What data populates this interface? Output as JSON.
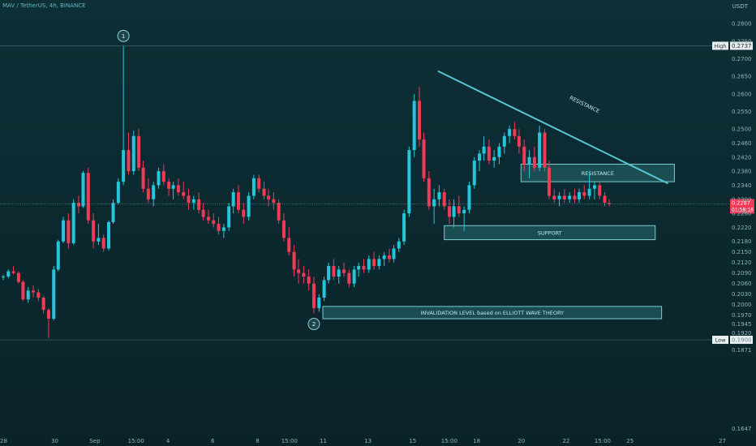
{
  "header": {
    "symbol": "MAV / TetherUS, 4h, BINANCE"
  },
  "axis": {
    "unit": "USDT"
  },
  "colors": {
    "up": "#26c6da",
    "down": "#ef3b55",
    "trend": "#56c7d6",
    "zone_fill": "#2c7b7f",
    "zone_stroke": "#79cfd4"
  },
  "chart_data": {
    "type": "candlestick",
    "y_ticks": [
      "0.1647",
      "0.1871",
      "0.1900",
      "0.1920",
      "0.1945",
      "0.1970",
      "0.2000",
      "0.2030",
      "0.2060",
      "0.2090",
      "0.2120",
      "0.2150",
      "0.2180",
      "0.2220",
      "0.2260",
      "0.2300",
      "0.2340",
      "0.2380",
      "0.2420",
      "0.2460",
      "0.2500",
      "0.2550",
      "0.2600",
      "0.2650",
      "0.2700",
      "0.2750",
      "0.2800"
    ],
    "ylim": [
      0.163,
      0.2835
    ],
    "x_ticks": [
      {
        "label": "28",
        "pos": 0.0
      },
      {
        "label": "30",
        "pos": 0.08
      },
      {
        "label": "Sep",
        "pos": 0.14
      },
      {
        "label": "15:00",
        "pos": 0.2
      },
      {
        "label": "4",
        "pos": 0.26
      },
      {
        "label": "6",
        "pos": 0.33
      },
      {
        "label": "8",
        "pos": 0.4
      },
      {
        "label": "15:00",
        "pos": 0.44
      },
      {
        "label": "11",
        "pos": 0.5
      },
      {
        "label": "13",
        "pos": 0.57
      },
      {
        "label": "15",
        "pos": 0.64
      },
      {
        "label": "15:00",
        "pos": 0.69
      },
      {
        "label": "18",
        "pos": 0.74
      },
      {
        "label": "20",
        "pos": 0.81
      },
      {
        "label": "22",
        "pos": 0.88
      },
      {
        "label": "15:00",
        "pos": 0.93
      },
      {
        "label": "25",
        "pos": 0.98
      }
    ],
    "extra_x_label": "27",
    "high": {
      "label": "High",
      "value": "0.2737"
    },
    "low": {
      "label": "Low",
      "value": "0.1900"
    },
    "last_price": {
      "value": "0.2287",
      "countdown": "01:58:18"
    },
    "annotations": {
      "wave1": "1",
      "wave2": "2",
      "resistance_line": "RESISTANCE",
      "resistance_zone": "RESISTANCE",
      "support_zone": "SUPPORT",
      "invalidation_zone": "INVALIDATION LEVEL based on ELLIOTT WAVE THEORY"
    },
    "zones": [
      {
        "name": "resistance-zone",
        "label_key": "resistance_zone",
        "x_start": 0.81,
        "x_end": 1.05,
        "low": 0.235,
        "high": 0.24
      },
      {
        "name": "support-zone",
        "label_key": "support_zone",
        "x_start": 0.69,
        "x_end": 1.02,
        "low": 0.2185,
        "high": 0.2225
      },
      {
        "name": "invalidation-zone",
        "label_key": "invalidation_zone",
        "x_start": 0.5,
        "x_end": 1.03,
        "low": 0.196,
        "high": 0.1995
      }
    ],
    "trendline": {
      "x1": 0.68,
      "y1": 0.2665,
      "x2": 1.04,
      "y2": 0.2345
    },
    "candles": [
      [
        0.0,
        0.208,
        0.2085,
        0.207,
        0.208
      ],
      [
        0.008,
        0.208,
        0.21,
        0.2075,
        0.2095
      ],
      [
        0.016,
        0.2095,
        0.211,
        0.2085,
        0.209
      ],
      [
        0.024,
        0.209,
        0.2095,
        0.206,
        0.2065
      ],
      [
        0.031,
        0.2065,
        0.207,
        0.201,
        0.2015
      ],
      [
        0.039,
        0.2015,
        0.205,
        0.2005,
        0.204
      ],
      [
        0.047,
        0.204,
        0.2055,
        0.202,
        0.2035
      ],
      [
        0.055,
        0.2035,
        0.2045,
        0.201,
        0.202
      ],
      [
        0.063,
        0.202,
        0.2025,
        0.1975,
        0.1985
      ],
      [
        0.071,
        0.1985,
        0.199,
        0.1905,
        0.196
      ],
      [
        0.079,
        0.196,
        0.211,
        0.1955,
        0.21
      ],
      [
        0.086,
        0.21,
        0.2185,
        0.2095,
        0.218
      ],
      [
        0.094,
        0.218,
        0.225,
        0.2175,
        0.224
      ],
      [
        0.102,
        0.224,
        0.226,
        0.216,
        0.2175
      ],
      [
        0.11,
        0.2175,
        0.23,
        0.217,
        0.229
      ],
      [
        0.118,
        0.229,
        0.231,
        0.226,
        0.228
      ],
      [
        0.125,
        0.228,
        0.238,
        0.2275,
        0.2375
      ],
      [
        0.133,
        0.2375,
        0.239,
        0.223,
        0.224
      ],
      [
        0.141,
        0.224,
        0.226,
        0.216,
        0.218
      ],
      [
        0.149,
        0.218,
        0.223,
        0.217,
        0.219
      ],
      [
        0.157,
        0.219,
        0.22,
        0.215,
        0.216
      ],
      [
        0.165,
        0.216,
        0.224,
        0.2155,
        0.2235
      ],
      [
        0.172,
        0.2235,
        0.23,
        0.223,
        0.229
      ],
      [
        0.18,
        0.229,
        0.236,
        0.2285,
        0.235
      ],
      [
        0.188,
        0.235,
        0.2737,
        0.234,
        0.244
      ],
      [
        0.196,
        0.244,
        0.249,
        0.237,
        0.238
      ],
      [
        0.204,
        0.238,
        0.2495,
        0.237,
        0.248
      ],
      [
        0.212,
        0.248,
        0.25,
        0.238,
        0.239
      ],
      [
        0.219,
        0.239,
        0.241,
        0.232,
        0.233
      ],
      [
        0.227,
        0.233,
        0.236,
        0.229,
        0.23
      ],
      [
        0.235,
        0.23,
        0.235,
        0.228,
        0.234
      ],
      [
        0.243,
        0.234,
        0.239,
        0.233,
        0.238
      ],
      [
        0.251,
        0.238,
        0.24,
        0.234,
        0.235
      ],
      [
        0.259,
        0.235,
        0.236,
        0.231,
        0.233
      ],
      [
        0.266,
        0.233,
        0.235,
        0.23,
        0.234
      ],
      [
        0.274,
        0.234,
        0.236,
        0.231,
        0.232
      ],
      [
        0.282,
        0.232,
        0.235,
        0.23,
        0.231
      ],
      [
        0.29,
        0.231,
        0.233,
        0.227,
        0.229
      ],
      [
        0.298,
        0.229,
        0.231,
        0.227,
        0.23
      ],
      [
        0.306,
        0.23,
        0.232,
        0.226,
        0.227
      ],
      [
        0.313,
        0.227,
        0.229,
        0.224,
        0.225
      ],
      [
        0.321,
        0.225,
        0.227,
        0.223,
        0.224
      ],
      [
        0.329,
        0.224,
        0.226,
        0.222,
        0.223
      ],
      [
        0.337,
        0.223,
        0.225,
        0.22,
        0.221
      ],
      [
        0.345,
        0.221,
        0.223,
        0.219,
        0.222
      ],
      [
        0.353,
        0.222,
        0.229,
        0.221,
        0.228
      ],
      [
        0.36,
        0.228,
        0.233,
        0.226,
        0.232
      ],
      [
        0.368,
        0.232,
        0.234,
        0.226,
        0.227
      ],
      [
        0.376,
        0.227,
        0.229,
        0.223,
        0.225
      ],
      [
        0.384,
        0.225,
        0.232,
        0.224,
        0.231
      ],
      [
        0.392,
        0.231,
        0.237,
        0.23,
        0.236
      ],
      [
        0.4,
        0.236,
        0.237,
        0.232,
        0.233
      ],
      [
        0.408,
        0.233,
        0.235,
        0.23,
        0.231
      ],
      [
        0.415,
        0.231,
        0.233,
        0.228,
        0.23
      ],
      [
        0.423,
        0.23,
        0.232,
        0.227,
        0.229
      ],
      [
        0.431,
        0.229,
        0.23,
        0.223,
        0.224
      ],
      [
        0.439,
        0.224,
        0.226,
        0.218,
        0.219
      ],
      [
        0.447,
        0.219,
        0.222,
        0.214,
        0.215
      ],
      [
        0.455,
        0.215,
        0.217,
        0.208,
        0.21
      ],
      [
        0.462,
        0.21,
        0.213,
        0.206,
        0.209
      ],
      [
        0.47,
        0.209,
        0.211,
        0.206,
        0.208
      ],
      [
        0.478,
        0.208,
        0.21,
        0.204,
        0.206
      ],
      [
        0.486,
        0.206,
        0.208,
        0.1975,
        0.199
      ],
      [
        0.494,
        0.199,
        0.203,
        0.198,
        0.202
      ],
      [
        0.502,
        0.202,
        0.208,
        0.201,
        0.207
      ],
      [
        0.509,
        0.207,
        0.212,
        0.206,
        0.211
      ],
      [
        0.517,
        0.211,
        0.213,
        0.207,
        0.208
      ],
      [
        0.525,
        0.208,
        0.211,
        0.206,
        0.21
      ],
      [
        0.533,
        0.21,
        0.212,
        0.208,
        0.209
      ],
      [
        0.541,
        0.209,
        0.21,
        0.205,
        0.206
      ],
      [
        0.549,
        0.206,
        0.211,
        0.205,
        0.21
      ],
      [
        0.556,
        0.21,
        0.212,
        0.208,
        0.211
      ],
      [
        0.564,
        0.211,
        0.213,
        0.209,
        0.21
      ],
      [
        0.572,
        0.21,
        0.214,
        0.209,
        0.213
      ],
      [
        0.58,
        0.213,
        0.215,
        0.21,
        0.211
      ],
      [
        0.588,
        0.211,
        0.214,
        0.21,
        0.213
      ],
      [
        0.596,
        0.213,
        0.215,
        0.211,
        0.214
      ],
      [
        0.604,
        0.214,
        0.216,
        0.212,
        0.213
      ],
      [
        0.611,
        0.213,
        0.217,
        0.212,
        0.216
      ],
      [
        0.619,
        0.216,
        0.219,
        0.215,
        0.218
      ],
      [
        0.627,
        0.218,
        0.227,
        0.217,
        0.226
      ],
      [
        0.635,
        0.226,
        0.245,
        0.225,
        0.244
      ],
      [
        0.643,
        0.244,
        0.26,
        0.242,
        0.258
      ],
      [
        0.651,
        0.258,
        0.262,
        0.245,
        0.247
      ],
      [
        0.658,
        0.247,
        0.249,
        0.235,
        0.236
      ],
      [
        0.666,
        0.236,
        0.238,
        0.227,
        0.228
      ],
      [
        0.674,
        0.228,
        0.233,
        0.223,
        0.23
      ],
      [
        0.682,
        0.23,
        0.234,
        0.228,
        0.232
      ],
      [
        0.69,
        0.232,
        0.233,
        0.227,
        0.228
      ],
      [
        0.698,
        0.228,
        0.23,
        0.223,
        0.225
      ],
      [
        0.705,
        0.225,
        0.23,
        0.222,
        0.228
      ],
      [
        0.713,
        0.228,
        0.231,
        0.225,
        0.226
      ],
      [
        0.721,
        0.226,
        0.228,
        0.221,
        0.227
      ],
      [
        0.729,
        0.227,
        0.235,
        0.226,
        0.234
      ],
      [
        0.737,
        0.234,
        0.242,
        0.233,
        0.241
      ],
      [
        0.745,
        0.241,
        0.244,
        0.238,
        0.243
      ],
      [
        0.752,
        0.243,
        0.248,
        0.241,
        0.245
      ],
      [
        0.76,
        0.245,
        0.247,
        0.24,
        0.241
      ],
      [
        0.768,
        0.241,
        0.244,
        0.239,
        0.242
      ],
      [
        0.776,
        0.242,
        0.246,
        0.24,
        0.245
      ],
      [
        0.784,
        0.245,
        0.249,
        0.243,
        0.248
      ],
      [
        0.792,
        0.248,
        0.251,
        0.246,
        0.25
      ],
      [
        0.8,
        0.25,
        0.252,
        0.247,
        0.248
      ],
      [
        0.807,
        0.248,
        0.25,
        0.243,
        0.245
      ],
      [
        0.815,
        0.245,
        0.247,
        0.238,
        0.24
      ],
      [
        0.823,
        0.24,
        0.244,
        0.236,
        0.242
      ],
      [
        0.831,
        0.242,
        0.245,
        0.238,
        0.239
      ],
      [
        0.839,
        0.239,
        0.251,
        0.238,
        0.249
      ],
      [
        0.847,
        0.249,
        0.25,
        0.238,
        0.239
      ],
      [
        0.854,
        0.239,
        0.241,
        0.23,
        0.231
      ],
      [
        0.862,
        0.231,
        0.233,
        0.229,
        0.23
      ],
      [
        0.87,
        0.23,
        0.232,
        0.228,
        0.231
      ],
      [
        0.878,
        0.231,
        0.233,
        0.229,
        0.23
      ],
      [
        0.886,
        0.23,
        0.232,
        0.229,
        0.231
      ],
      [
        0.894,
        0.231,
        0.233,
        0.229,
        0.23
      ],
      [
        0.901,
        0.23,
        0.233,
        0.229,
        0.232
      ],
      [
        0.909,
        0.232,
        0.234,
        0.23,
        0.231
      ],
      [
        0.917,
        0.231,
        0.238,
        0.23,
        0.233
      ],
      [
        0.925,
        0.233,
        0.235,
        0.23,
        0.234
      ],
      [
        0.933,
        0.234,
        0.235,
        0.23,
        0.231
      ],
      [
        0.941,
        0.231,
        0.232,
        0.228,
        0.229
      ],
      [
        0.948,
        0.229,
        0.23,
        0.228,
        0.2287
      ]
    ]
  }
}
